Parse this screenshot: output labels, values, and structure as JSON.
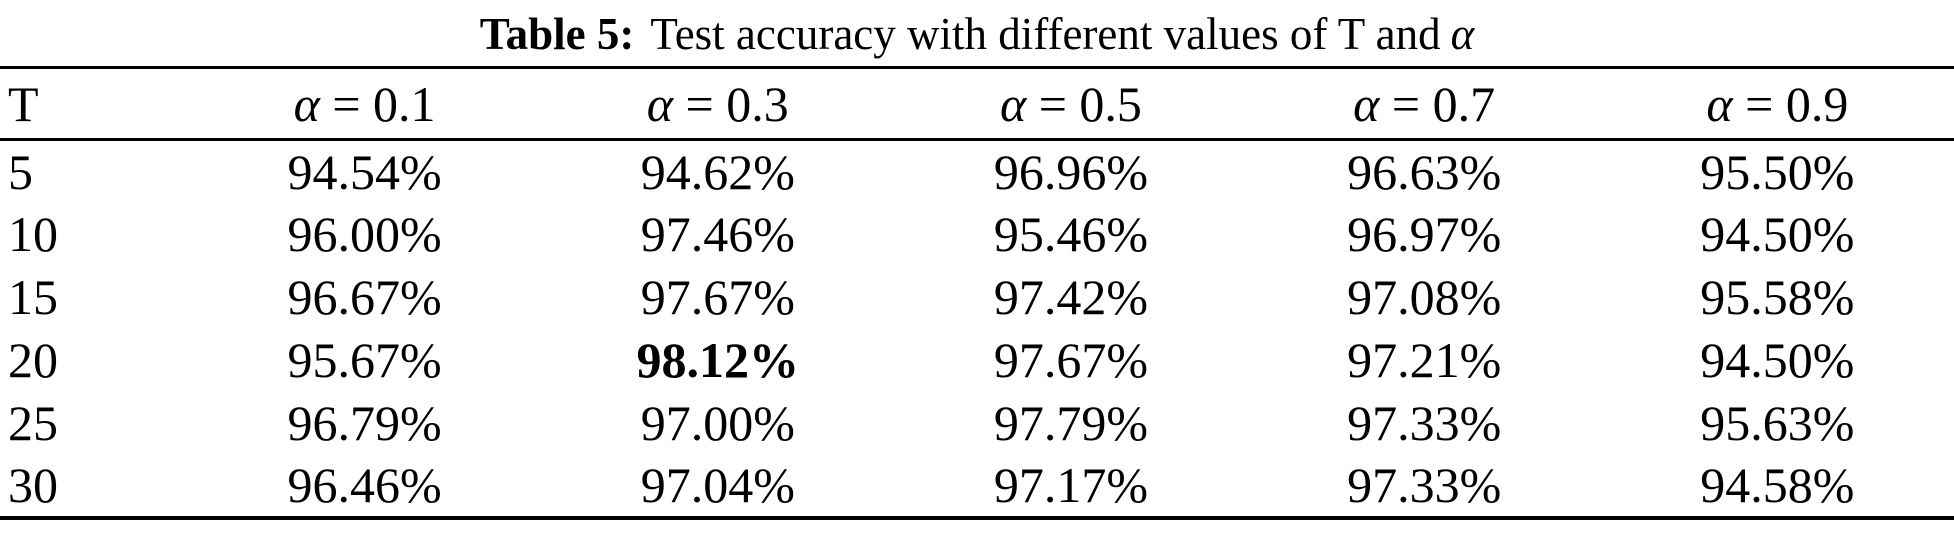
{
  "caption": {
    "label": "Table 5:",
    "text": "Test accuracy with different values of T and",
    "alpha": "α"
  },
  "table": {
    "t_header": "T",
    "headers": [
      {
        "symbol": "α",
        "eq": " = 0.1"
      },
      {
        "symbol": "α",
        "eq": " = 0.3"
      },
      {
        "symbol": "α",
        "eq": " = 0.5"
      },
      {
        "symbol": "α",
        "eq": " = 0.7"
      },
      {
        "symbol": "α",
        "eq": " = 0.9"
      }
    ],
    "rows": [
      {
        "t": "5",
        "values": [
          "94.54%",
          "94.62%",
          "96.96%",
          "96.63%",
          "95.50%"
        ]
      },
      {
        "t": "10",
        "values": [
          "96.00%",
          "97.46%",
          "95.46%",
          "96.97%",
          "94.50%"
        ]
      },
      {
        "t": "15",
        "values": [
          "96.67%",
          "97.67%",
          "97.42%",
          "97.08%",
          "95.58%"
        ]
      },
      {
        "t": "20",
        "values": [
          "95.67%",
          "98.12%",
          "97.67%",
          "97.21%",
          "94.50%"
        ]
      },
      {
        "t": "25",
        "values": [
          "96.79%",
          "97.00%",
          "97.79%",
          "97.33%",
          "95.63%"
        ]
      },
      {
        "t": "30",
        "values": [
          "96.46%",
          "97.04%",
          "97.17%",
          "97.33%",
          "94.58%"
        ]
      }
    ],
    "text_color": "#000000",
    "background_color": "#ffffff"
  },
  "chart_data": {
    "type": "table",
    "title": "Table 5: Test accuracy with different values of T and α",
    "columns": [
      "T",
      "α = 0.1",
      "α = 0.3",
      "α = 0.5",
      "α = 0.7",
      "α = 0.9"
    ],
    "rows": [
      [
        "5",
        "94.54%",
        "94.62%",
        "96.96%",
        "96.63%",
        "95.50%"
      ],
      [
        "10",
        "96.00%",
        "97.46%",
        "95.46%",
        "96.97%",
        "94.50%"
      ],
      [
        "15",
        "96.67%",
        "97.67%",
        "97.42%",
        "97.08%",
        "95.58%"
      ],
      [
        "20",
        "95.67%",
        "98.12%",
        "97.67%",
        "97.21%",
        "94.50%"
      ],
      [
        "25",
        "96.79%",
        "97.00%",
        "97.79%",
        "97.33%",
        "95.63%"
      ],
      [
        "30",
        "96.46%",
        "97.04%",
        "97.17%",
        "97.33%",
        "94.58%"
      ]
    ],
    "highlight": {
      "row_T": "20",
      "column": "α = 0.3",
      "value": "98.12%",
      "style": "bold"
    }
  }
}
